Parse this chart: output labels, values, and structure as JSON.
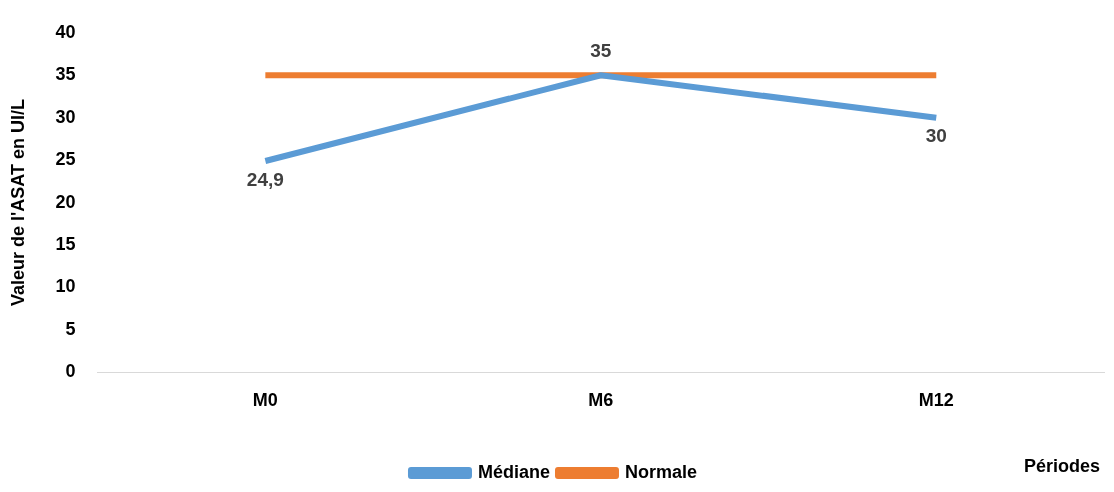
{
  "chart_data": {
    "type": "line",
    "xlabel": "Périodes",
    "ylabel": "Valeur de l'ASAT en UI/L",
    "categories": [
      "M0",
      "M6",
      "M12"
    ],
    "series": [
      {
        "name": "Médiane",
        "color": "#5b9bd5",
        "values": [
          24.9,
          35,
          30
        ],
        "value_labels": [
          "24,9",
          "35",
          "30"
        ]
      },
      {
        "name": "Normale",
        "color": "#ed7d31",
        "values": [
          35,
          35,
          35
        ]
      }
    ],
    "ylim": [
      0,
      40
    ],
    "yticks": [
      0,
      5,
      10,
      15,
      20,
      25,
      30,
      35,
      40
    ],
    "grid": false,
    "legend": "bottom",
    "marker": "none",
    "line_style": "solid"
  }
}
